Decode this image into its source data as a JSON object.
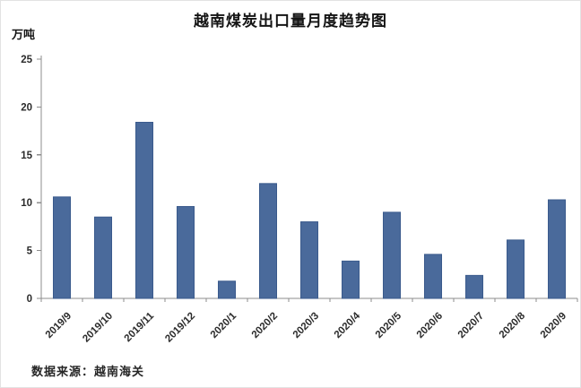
{
  "page": {
    "background": "#ffffff",
    "border_color": "#e3e3e3"
  },
  "chart_data": {
    "type": "bar",
    "title": "越南煤炭出口量月度趋势图",
    "ylabel": "万吨",
    "xlabel": "",
    "categories": [
      "2019/9",
      "2019/10",
      "2019/11",
      "2019/12",
      "2020/1",
      "2020/2",
      "2020/3",
      "2020/4",
      "2020/5",
      "2020/6",
      "2020/7",
      "2020/8",
      "2020/9"
    ],
    "values": [
      10.6,
      8.5,
      18.4,
      9.6,
      1.8,
      12.0,
      8.0,
      3.9,
      9.0,
      4.6,
      2.4,
      6.1,
      10.3
    ],
    "ylim": [
      0,
      25
    ],
    "yticks": [
      0,
      5,
      10,
      15,
      20,
      25
    ],
    "grid": false,
    "legend_position": "none",
    "bar_color": "#4A6A9B",
    "bar_border_color": "#3A5A8C",
    "axis_color": "#8C8C8C",
    "label_color": "#2b2b2b"
  },
  "source_note": "数据来源：越南海关"
}
